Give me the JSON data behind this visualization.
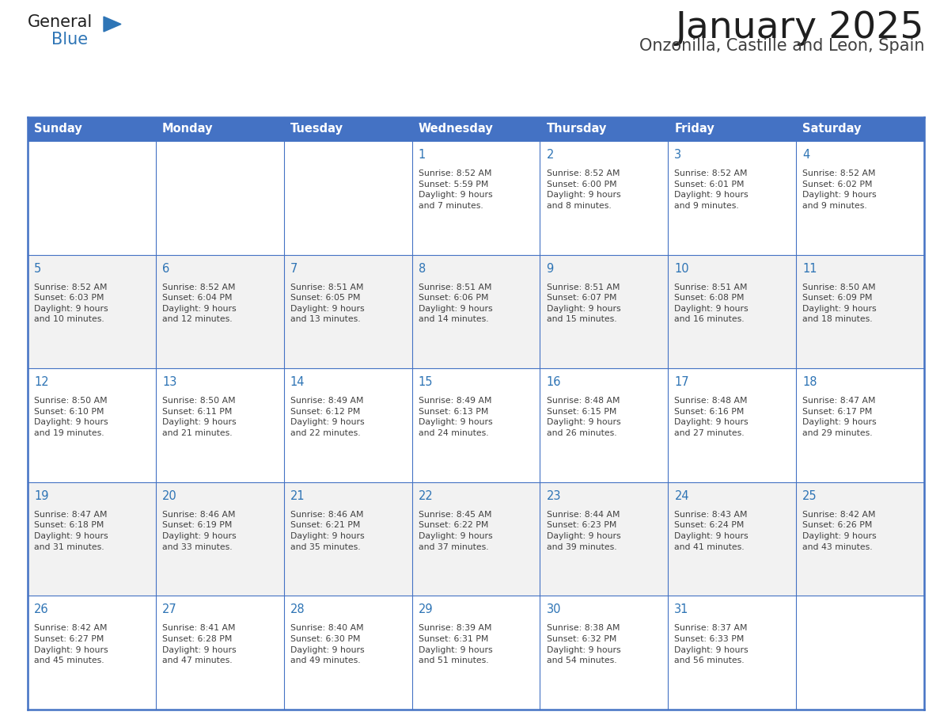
{
  "title": "January 2025",
  "subtitle": "Onzonilla, Castille and Leon, Spain",
  "days_of_week": [
    "Sunday",
    "Monday",
    "Tuesday",
    "Wednesday",
    "Thursday",
    "Friday",
    "Saturday"
  ],
  "header_bg": "#4472C4",
  "header_text_color": "#FFFFFF",
  "cell_bg_white": "#FFFFFF",
  "cell_bg_gray": "#F2F2F2",
  "day_number_color": "#2E74B5",
  "cell_text_color": "#404040",
  "border_color": "#4472C4",
  "row_border_color": "#4472C4",
  "title_color": "#1F1F1F",
  "subtitle_color": "#404040",
  "logo_general_color": "#1F1F1F",
  "logo_blue_color": "#2E75B6",
  "fig_width": 11.88,
  "fig_height": 9.18,
  "weeks": [
    [
      {
        "day": "",
        "info": ""
      },
      {
        "day": "",
        "info": ""
      },
      {
        "day": "",
        "info": ""
      },
      {
        "day": "1",
        "info": "Sunrise: 8:52 AM\nSunset: 5:59 PM\nDaylight: 9 hours\nand 7 minutes."
      },
      {
        "day": "2",
        "info": "Sunrise: 8:52 AM\nSunset: 6:00 PM\nDaylight: 9 hours\nand 8 minutes."
      },
      {
        "day": "3",
        "info": "Sunrise: 8:52 AM\nSunset: 6:01 PM\nDaylight: 9 hours\nand 9 minutes."
      },
      {
        "day": "4",
        "info": "Sunrise: 8:52 AM\nSunset: 6:02 PM\nDaylight: 9 hours\nand 9 minutes."
      }
    ],
    [
      {
        "day": "5",
        "info": "Sunrise: 8:52 AM\nSunset: 6:03 PM\nDaylight: 9 hours\nand 10 minutes."
      },
      {
        "day": "6",
        "info": "Sunrise: 8:52 AM\nSunset: 6:04 PM\nDaylight: 9 hours\nand 12 minutes."
      },
      {
        "day": "7",
        "info": "Sunrise: 8:51 AM\nSunset: 6:05 PM\nDaylight: 9 hours\nand 13 minutes."
      },
      {
        "day": "8",
        "info": "Sunrise: 8:51 AM\nSunset: 6:06 PM\nDaylight: 9 hours\nand 14 minutes."
      },
      {
        "day": "9",
        "info": "Sunrise: 8:51 AM\nSunset: 6:07 PM\nDaylight: 9 hours\nand 15 minutes."
      },
      {
        "day": "10",
        "info": "Sunrise: 8:51 AM\nSunset: 6:08 PM\nDaylight: 9 hours\nand 16 minutes."
      },
      {
        "day": "11",
        "info": "Sunrise: 8:50 AM\nSunset: 6:09 PM\nDaylight: 9 hours\nand 18 minutes."
      }
    ],
    [
      {
        "day": "12",
        "info": "Sunrise: 8:50 AM\nSunset: 6:10 PM\nDaylight: 9 hours\nand 19 minutes."
      },
      {
        "day": "13",
        "info": "Sunrise: 8:50 AM\nSunset: 6:11 PM\nDaylight: 9 hours\nand 21 minutes."
      },
      {
        "day": "14",
        "info": "Sunrise: 8:49 AM\nSunset: 6:12 PM\nDaylight: 9 hours\nand 22 minutes."
      },
      {
        "day": "15",
        "info": "Sunrise: 8:49 AM\nSunset: 6:13 PM\nDaylight: 9 hours\nand 24 minutes."
      },
      {
        "day": "16",
        "info": "Sunrise: 8:48 AM\nSunset: 6:15 PM\nDaylight: 9 hours\nand 26 minutes."
      },
      {
        "day": "17",
        "info": "Sunrise: 8:48 AM\nSunset: 6:16 PM\nDaylight: 9 hours\nand 27 minutes."
      },
      {
        "day": "18",
        "info": "Sunrise: 8:47 AM\nSunset: 6:17 PM\nDaylight: 9 hours\nand 29 minutes."
      }
    ],
    [
      {
        "day": "19",
        "info": "Sunrise: 8:47 AM\nSunset: 6:18 PM\nDaylight: 9 hours\nand 31 minutes."
      },
      {
        "day": "20",
        "info": "Sunrise: 8:46 AM\nSunset: 6:19 PM\nDaylight: 9 hours\nand 33 minutes."
      },
      {
        "day": "21",
        "info": "Sunrise: 8:46 AM\nSunset: 6:21 PM\nDaylight: 9 hours\nand 35 minutes."
      },
      {
        "day": "22",
        "info": "Sunrise: 8:45 AM\nSunset: 6:22 PM\nDaylight: 9 hours\nand 37 minutes."
      },
      {
        "day": "23",
        "info": "Sunrise: 8:44 AM\nSunset: 6:23 PM\nDaylight: 9 hours\nand 39 minutes."
      },
      {
        "day": "24",
        "info": "Sunrise: 8:43 AM\nSunset: 6:24 PM\nDaylight: 9 hours\nand 41 minutes."
      },
      {
        "day": "25",
        "info": "Sunrise: 8:42 AM\nSunset: 6:26 PM\nDaylight: 9 hours\nand 43 minutes."
      }
    ],
    [
      {
        "day": "26",
        "info": "Sunrise: 8:42 AM\nSunset: 6:27 PM\nDaylight: 9 hours\nand 45 minutes."
      },
      {
        "day": "27",
        "info": "Sunrise: 8:41 AM\nSunset: 6:28 PM\nDaylight: 9 hours\nand 47 minutes."
      },
      {
        "day": "28",
        "info": "Sunrise: 8:40 AM\nSunset: 6:30 PM\nDaylight: 9 hours\nand 49 minutes."
      },
      {
        "day": "29",
        "info": "Sunrise: 8:39 AM\nSunset: 6:31 PM\nDaylight: 9 hours\nand 51 minutes."
      },
      {
        "day": "30",
        "info": "Sunrise: 8:38 AM\nSunset: 6:32 PM\nDaylight: 9 hours\nand 54 minutes."
      },
      {
        "day": "31",
        "info": "Sunrise: 8:37 AM\nSunset: 6:33 PM\nDaylight: 9 hours\nand 56 minutes."
      },
      {
        "day": "",
        "info": ""
      }
    ]
  ]
}
